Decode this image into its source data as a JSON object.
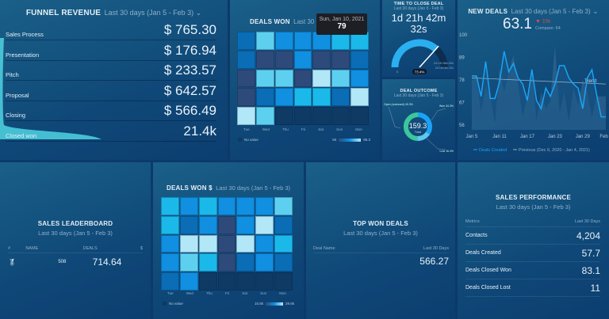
{
  "colors": {
    "levels": [
      "#2e4a7a",
      "#0a6db6",
      "#118fe0",
      "#1ab9ea",
      "#5dd0f0",
      "#b2e7f7"
    ],
    "none": "#0f3a64",
    "funnel": "#4fd3e2",
    "line": "#1aa3f5",
    "prev": "#5a7e9c",
    "donut_open": "#3cc79a",
    "donut_won": "#1aa3f5",
    "donut_lost": "#5dc8ee"
  },
  "range": "Last 30 days (Jan 5 - Feb 3)",
  "funnel": {
    "title": "FUNNEL REVENUE",
    "rows": [
      {
        "label": "Sales Process",
        "value": "$ 765.30"
      },
      {
        "label": "Presentation",
        "value": "$ 176.94"
      },
      {
        "label": "Pitch",
        "value": "$ 233.57"
      },
      {
        "label": "Proposal",
        "value": "$ 642.57"
      },
      {
        "label": "Closing",
        "value": "$ 566.49"
      },
      {
        "label": "Closed won",
        "value": "21.4k"
      }
    ]
  },
  "deals_won": {
    "title": "DEALS WON",
    "range": "Last 30 days",
    "tooltip_date": "Sun, Jan 10, 2021",
    "tooltip_value": "79",
    "days": [
      "Tue",
      "Wed",
      "Thu",
      "Fri",
      "Sat",
      "Sun",
      "Mon"
    ],
    "no_value": "No value",
    "min": "50",
    "max": "96.3",
    "grid": [
      [
        1,
        4,
        2,
        2,
        2,
        3,
        3
      ],
      [
        1,
        0,
        0,
        2,
        0,
        0,
        1
      ],
      [
        0,
        4,
        4,
        0,
        5,
        4,
        2
      ],
      [
        0,
        1,
        2,
        3,
        3,
        1,
        5
      ],
      [
        5,
        4,
        null,
        null,
        null,
        null,
        null
      ]
    ]
  },
  "time_to_close": {
    "title": "TIME TO CLOSE DEAL",
    "value_line1": "1d 21h 42m",
    "value_line2": "32s",
    "gauge_fraction": 0.734,
    "gauge_label": "73.4%",
    "min": "0",
    "mark1": "2d 14h 58m 50s",
    "mark2": "2d 15h 8m 22s"
  },
  "deal_outcome": {
    "title": "DEAL OUTCOME",
    "total": "159.3",
    "total_label": "Total",
    "segments": [
      {
        "name": "Open (unclosed)",
        "pct": 49.3
      },
      {
        "name": "Won",
        "pct": 34.3
      },
      {
        "name": "Lost",
        "pct": 16.4
      }
    ],
    "labels": [
      "Open (unclosed) 49.3%",
      "Won 34.3%",
      "Lost 16.4%"
    ]
  },
  "new_deals": {
    "title": "NEW DEALS",
    "value": "63.1",
    "change": "▼ 1%",
    "compare": "Compare: 64",
    "trend_label": "Trend",
    "chart_data": {
      "type": "line",
      "ylim": [
        56,
        100
      ],
      "yticks": [
        "100",
        "89",
        "78",
        "67",
        "56"
      ],
      "xticks": [
        "Jan 5",
        "Jan 11",
        "Jan 17",
        "Jan 23",
        "Jan 29",
        "Feb 3"
      ],
      "series": [
        {
          "name": "Deals Created",
          "values": [
            80,
            80,
            70,
            87,
            69,
            69,
            77,
            92,
            82,
            86,
            79,
            76,
            68,
            83,
            68,
            64,
            74,
            70,
            76,
            85,
            85,
            79,
            76,
            74,
            64,
            79,
            83,
            71,
            60,
            60
          ]
        },
        {
          "name": "Previous (Dec 6, 2020 - Jan 4, 2021)",
          "values": [
            80,
            80,
            62,
            75,
            70,
            57,
            84,
            72,
            82,
            90,
            76,
            60,
            70,
            84,
            58,
            72,
            64,
            68,
            95,
            62,
            72,
            58,
            74,
            66,
            78,
            72,
            60,
            70,
            70,
            70
          ]
        }
      ],
      "trend": [
        79,
        76
      ]
    }
  },
  "leaderboard": {
    "title": "SALES LEADERBOARD",
    "cols": [
      "#",
      "NAME",
      "DEALS",
      "$"
    ],
    "rows": [
      {
        "rank_icon": "medal-icon",
        "deals": "508",
        "amount": "714.64"
      }
    ]
  },
  "deals_won_usd": {
    "title": "DEALS WON $",
    "days": [
      "Tue",
      "Wed",
      "Thu",
      "Fri",
      "Sat",
      "Sun",
      "Mon"
    ],
    "no_value": "No value",
    "min": "10.5k",
    "max": "29.6k",
    "grid": [
      [
        3,
        2,
        3,
        2,
        2,
        2,
        4
      ],
      [
        3,
        1,
        2,
        0,
        2,
        5,
        1
      ],
      [
        2,
        5,
        5,
        0,
        5,
        2,
        3
      ],
      [
        2,
        4,
        3,
        0,
        1,
        2,
        1
      ],
      [
        1,
        2,
        null,
        null,
        null,
        null,
        null
      ]
    ]
  },
  "top_won": {
    "title": "TOP WON DEALS",
    "cols": [
      "Deal Name",
      "Last 30 Days"
    ],
    "rows": [
      {
        "name": "",
        "value": "566.27"
      }
    ]
  },
  "sales_perf": {
    "title": "SALES PERFORMANCE",
    "cols": [
      "Metrics",
      "Last 30 Days"
    ],
    "rows": [
      {
        "label": "Contacts",
        "value": "4,204"
      },
      {
        "label": "Deals Created",
        "value": "57.7"
      },
      {
        "label": "Deals Closed Won",
        "value": "83.1"
      },
      {
        "label": "Deals Closed Lost",
        "value": "11"
      }
    ]
  }
}
